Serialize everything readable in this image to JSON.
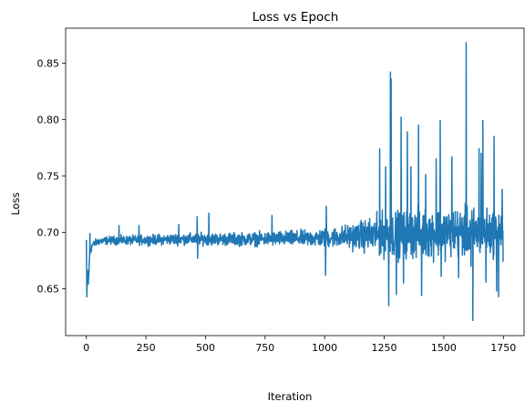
{
  "chart_data": {
    "type": "line",
    "title": "Loss vs Epoch",
    "xlabel": "Iteration",
    "ylabel": "Loss",
    "xlim": [
      -87,
      1837
    ],
    "ylim": [
      0.6085,
      0.8809
    ],
    "xticks": [
      0,
      250,
      500,
      750,
      1000,
      1250,
      1500,
      1750
    ],
    "yticks": [
      0.65,
      0.7,
      0.75,
      0.8,
      0.85
    ],
    "ytick_labels": [
      "0.65",
      "0.70",
      "0.75",
      "0.80",
      "0.85"
    ],
    "grid": false,
    "legend": "none",
    "line_color": "#1f77b4",
    "n_points": 1750,
    "series": [
      {
        "keypoints": [
          [
            0,
            0.693
          ],
          [
            2,
            0.642
          ],
          [
            5,
            0.667
          ],
          [
            8,
            0.654
          ],
          [
            14,
            0.68
          ],
          [
            25,
            0.689
          ],
          [
            50,
            0.692
          ],
          [
            100,
            0.693
          ],
          [
            200,
            0.693
          ],
          [
            400,
            0.694
          ],
          [
            700,
            0.694
          ],
          [
            1000,
            0.695
          ],
          [
            1150,
            0.697
          ],
          [
            1300,
            0.698
          ],
          [
            1500,
            0.7
          ],
          [
            1749,
            0.7
          ]
        ],
        "noise_envelope": [
          [
            0,
            0.003
          ],
          [
            150,
            0.004
          ],
          [
            400,
            0.005
          ],
          [
            700,
            0.006
          ],
          [
            900,
            0.007
          ],
          [
            1050,
            0.009
          ],
          [
            1150,
            0.013
          ],
          [
            1250,
            0.02
          ],
          [
            1400,
            0.022
          ],
          [
            1600,
            0.022
          ],
          [
            1749,
            0.02
          ]
        ],
        "spikes": [
          [
            15,
            0.699
          ],
          [
            137,
            0.706
          ],
          [
            221,
            0.706
          ],
          [
            388,
            0.707
          ],
          [
            465,
            0.714
          ],
          [
            467,
            0.677
          ],
          [
            514,
            0.717
          ],
          [
            779,
            0.669
          ],
          [
            779,
            0.715
          ],
          [
            1004,
            0.662
          ],
          [
            1007,
            0.723
          ],
          [
            1231,
            0.774
          ],
          [
            1256,
            0.758
          ],
          [
            1269,
            0.635
          ],
          [
            1276,
            0.842
          ],
          [
            1279,
            0.836
          ],
          [
            1301,
            0.645
          ],
          [
            1321,
            0.802
          ],
          [
            1331,
            0.655
          ],
          [
            1347,
            0.789
          ],
          [
            1362,
            0.758
          ],
          [
            1394,
            0.795
          ],
          [
            1407,
            0.644
          ],
          [
            1424,
            0.751
          ],
          [
            1446,
            0.688
          ],
          [
            1468,
            0.765
          ],
          [
            1485,
            0.799
          ],
          [
            1489,
            0.661
          ],
          [
            1534,
            0.767
          ],
          [
            1562,
            0.66
          ],
          [
            1594,
            0.868
          ],
          [
            1614,
            0.67
          ],
          [
            1622,
            0.622
          ],
          [
            1648,
            0.774
          ],
          [
            1657,
            0.77
          ],
          [
            1664,
            0.799
          ],
          [
            1677,
            0.656
          ],
          [
            1711,
            0.785
          ],
          [
            1722,
            0.648
          ],
          [
            1730,
            0.643
          ],
          [
            1745,
            0.738
          ],
          [
            1749,
            0.674
          ]
        ]
      }
    ]
  }
}
